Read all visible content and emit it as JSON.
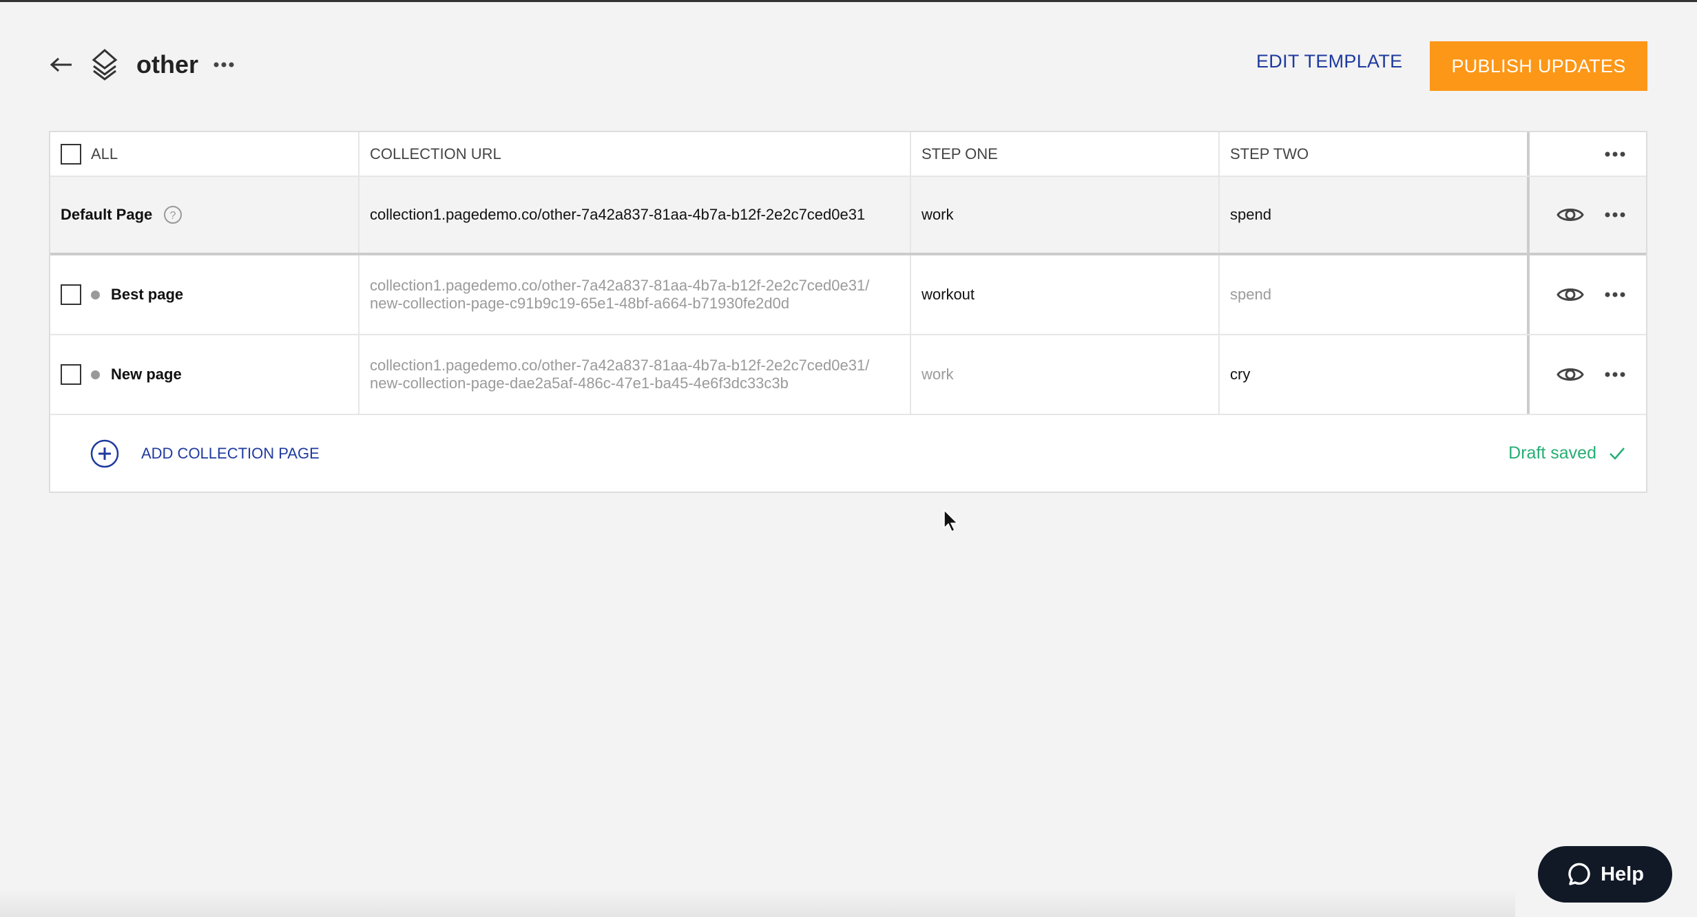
{
  "header": {
    "title": "other",
    "edit_template": "EDIT TEMPLATE",
    "publish_updates": "PUBLISH UPDATES"
  },
  "table": {
    "columns": [
      "ALL",
      "COLLECTION URL",
      "STEP ONE",
      "STEP TWO"
    ],
    "default_row": {
      "name": "Default Page",
      "url": "collection1.pagedemo.co/other-7a42a837-81aa-4b7a-b12f-2e2c7ced0e31",
      "step_one": "work",
      "step_two": "spend"
    },
    "rows": [
      {
        "name": "Best page",
        "url_line1": "collection1.pagedemo.co/other-7a42a837-81aa-4b7a-b12f-2e2c7ced0e31/",
        "url_line2": "new-collection-page-c91b9c19-65e1-48bf-a664-b71930fe2d0d",
        "step_one": "workout",
        "step_two": "spend"
      },
      {
        "name": "New page",
        "url_line1": "collection1.pagedemo.co/other-7a42a837-81aa-4b7a-b12f-2e2c7ced0e31/",
        "url_line2": "new-collection-page-dae2a5af-486c-47e1-ba45-4e6f3dc33c3b",
        "step_one": "work",
        "step_two": "cry"
      }
    ]
  },
  "footer": {
    "add_collection_page": "ADD COLLECTION PAGE",
    "status": "Draft saved"
  },
  "help": {
    "label": "Help"
  },
  "colors": {
    "accent": "#fd9717",
    "link": "#1f3a9e",
    "success": "#27ae74"
  }
}
